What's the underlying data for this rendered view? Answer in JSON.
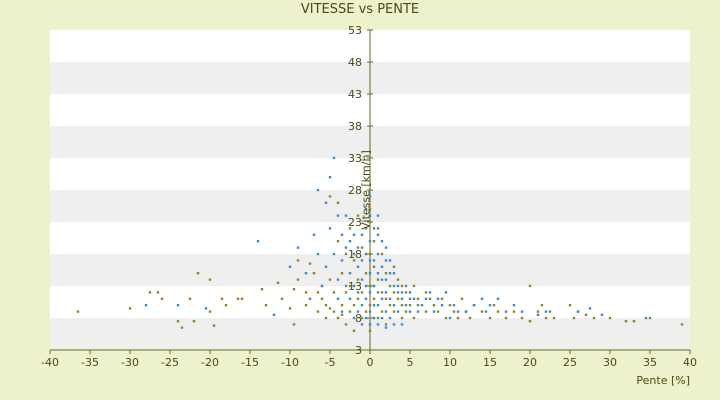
{
  "chart_data": {
    "type": "scatter",
    "title": "VITESSE vs PENTE",
    "xlabel": "Pente [%]",
    "ylabel": "Vitesse [km/h]",
    "xlim": [
      -40,
      40
    ],
    "ylim": [
      3,
      53
    ],
    "x_ticks": [
      "-40",
      "-35",
      "-30",
      "-25",
      "-20",
      "-15",
      "-10",
      "-5",
      "0",
      "5",
      "10",
      "15",
      "20",
      "25",
      "30",
      "35",
      "40"
    ],
    "y_ticks": [
      "3",
      "8",
      "13",
      "18",
      "23",
      "28",
      "33",
      "38",
      "43",
      "48",
      "53"
    ],
    "grid": "horizontal bands",
    "colors": {
      "band_light": "#ffffff",
      "band_dark": "#efefef",
      "axis": "#6b6b1a",
      "series_a": "#8a8a1e",
      "series_b": "#2e8fe0"
    },
    "series": [
      {
        "color": "#8a8a1e",
        "points": [
          [
            -36.5,
            9
          ],
          [
            -30,
            9.5
          ],
          [
            -27.5,
            12
          ],
          [
            -26.5,
            12
          ],
          [
            -26,
            11
          ],
          [
            -24,
            7.5
          ],
          [
            -23.5,
            6.5
          ],
          [
            -22.5,
            11
          ],
          [
            -22,
            7.5
          ],
          [
            -21.5,
            15
          ],
          [
            -20,
            14
          ],
          [
            -20,
            9
          ],
          [
            -19.5,
            6.8
          ],
          [
            -18.5,
            11
          ],
          [
            -18,
            10
          ],
          [
            -16.5,
            11
          ],
          [
            -16,
            11
          ],
          [
            -13.5,
            12.5
          ],
          [
            -13,
            10
          ],
          [
            -11.5,
            13.5
          ],
          [
            -11,
            11
          ],
          [
            -10,
            9.5
          ],
          [
            -9.5,
            7
          ],
          [
            -9.5,
            12.5
          ],
          [
            -9,
            14
          ],
          [
            -9,
            17
          ],
          [
            -8,
            10
          ],
          [
            -8,
            12
          ],
          [
            -7.5,
            16.5
          ],
          [
            -7,
            15
          ],
          [
            -6.5,
            9
          ],
          [
            -6.5,
            12
          ],
          [
            -6,
            11
          ],
          [
            -6,
            13
          ],
          [
            -5.5,
            8
          ],
          [
            -5.5,
            10
          ],
          [
            -5,
            9.5
          ],
          [
            -5,
            14
          ],
          [
            -5,
            27
          ],
          [
            -4.5,
            9
          ],
          [
            -4.5,
            12
          ],
          [
            -4,
            8
          ],
          [
            -4,
            20
          ],
          [
            -4,
            26
          ],
          [
            -3.5,
            8.5
          ],
          [
            -3.5,
            10
          ],
          [
            -3.5,
            15
          ],
          [
            -3,
            7
          ],
          [
            -3,
            12
          ],
          [
            -3,
            18
          ],
          [
            -2.5,
            9
          ],
          [
            -2.5,
            13
          ],
          [
            -2.5,
            22
          ],
          [
            -2,
            6
          ],
          [
            -2,
            10
          ],
          [
            -2,
            17
          ],
          [
            -1.5,
            11
          ],
          [
            -1.5,
            14
          ],
          [
            -1.5,
            24
          ],
          [
            -1,
            8
          ],
          [
            -1,
            12
          ],
          [
            -1,
            19
          ],
          [
            -0.5,
            9
          ],
          [
            -0.5,
            15
          ],
          [
            -0.5,
            22
          ],
          [
            0,
            6
          ],
          [
            0,
            10
          ],
          [
            0,
            13
          ],
          [
            0,
            18
          ],
          [
            0,
            23
          ],
          [
            0,
            25
          ],
          [
            0.5,
            11
          ],
          [
            0.5,
            16
          ],
          [
            0.5,
            20
          ],
          [
            1,
            8
          ],
          [
            1,
            14
          ],
          [
            1,
            22
          ],
          [
            1.5,
            9
          ],
          [
            1.5,
            12
          ],
          [
            1.5,
            18
          ],
          [
            2,
            7
          ],
          [
            2,
            11
          ],
          [
            2,
            15
          ],
          [
            2.5,
            10
          ],
          [
            2.5,
            13
          ],
          [
            3,
            9
          ],
          [
            3,
            12
          ],
          [
            3,
            16
          ],
          [
            3.5,
            11
          ],
          [
            3.5,
            14
          ],
          [
            4,
            8
          ],
          [
            4,
            10
          ],
          [
            4,
            13
          ],
          [
            4.5,
            9
          ],
          [
            4.5,
            12
          ],
          [
            5,
            10
          ],
          [
            5,
            11
          ],
          [
            5.5,
            8
          ],
          [
            5.5,
            13
          ],
          [
            6,
            11
          ],
          [
            6,
            10
          ],
          [
            7,
            9
          ],
          [
            7,
            12
          ],
          [
            7.5,
            11
          ],
          [
            8,
            10
          ],
          [
            8.5,
            9
          ],
          [
            9,
            11
          ],
          [
            9.5,
            8
          ],
          [
            10,
            10
          ],
          [
            10.5,
            9
          ],
          [
            11,
            8
          ],
          [
            11.5,
            11
          ],
          [
            12,
            9
          ],
          [
            12.5,
            8
          ],
          [
            13,
            10
          ],
          [
            14,
            9
          ],
          [
            15,
            8
          ],
          [
            15.5,
            10
          ],
          [
            16,
            9
          ],
          [
            17,
            8
          ],
          [
            18,
            9
          ],
          [
            19,
            8
          ],
          [
            20,
            13
          ],
          [
            20,
            7.5
          ],
          [
            21,
            9
          ],
          [
            21.5,
            10
          ],
          [
            22,
            8
          ],
          [
            22.5,
            9
          ],
          [
            23,
            8
          ],
          [
            25,
            10
          ],
          [
            25.5,
            8
          ],
          [
            26,
            9
          ],
          [
            27,
            8.5
          ],
          [
            28,
            8
          ],
          [
            30,
            8
          ],
          [
            32,
            7.5
          ],
          [
            33,
            7.5
          ],
          [
            35,
            8
          ],
          [
            39,
            7
          ]
        ]
      },
      {
        "color": "#2e8fe0",
        "points": [
          [
            -28,
            10
          ],
          [
            -24,
            10
          ],
          [
            -20.5,
            9.5
          ],
          [
            -14,
            20
          ],
          [
            -12,
            8.5
          ],
          [
            -10,
            16
          ],
          [
            -9,
            19
          ],
          [
            -8,
            15
          ],
          [
            -7.5,
            11
          ],
          [
            -7,
            21
          ],
          [
            -6.5,
            18
          ],
          [
            -6.5,
            28
          ],
          [
            -6,
            13
          ],
          [
            -5.5,
            16
          ],
          [
            -5.5,
            26
          ],
          [
            -5,
            22
          ],
          [
            -5,
            30
          ],
          [
            -4.5,
            18
          ],
          [
            -4.5,
            33
          ],
          [
            -4,
            11
          ],
          [
            -4,
            14
          ],
          [
            -4,
            24
          ],
          [
            -3.5,
            9
          ],
          [
            -3.5,
            17
          ],
          [
            -3.5,
            21
          ],
          [
            -3,
            13
          ],
          [
            -3,
            19
          ],
          [
            -3,
            24
          ],
          [
            -2.5,
            11
          ],
          [
            -2.5,
            15
          ],
          [
            -2.5,
            20
          ],
          [
            -2,
            8
          ],
          [
            -2,
            13
          ],
          [
            -2,
            18
          ],
          [
            -2,
            21
          ],
          [
            -1.5,
            9
          ],
          [
            -1.5,
            12
          ],
          [
            -1.5,
            16
          ],
          [
            -1.5,
            19
          ],
          [
            -1,
            7
          ],
          [
            -1,
            10
          ],
          [
            -1,
            14
          ],
          [
            -1,
            17
          ],
          [
            -1,
            21
          ],
          [
            -0.5,
            8
          ],
          [
            -0.5,
            11
          ],
          [
            -0.5,
            13
          ],
          [
            -0.5,
            18
          ],
          [
            -0.5,
            25
          ],
          [
            0,
            7
          ],
          [
            0,
            9
          ],
          [
            0,
            12
          ],
          [
            0,
            15
          ],
          [
            0,
            17
          ],
          [
            0,
            20
          ],
          [
            0,
            24
          ],
          [
            0,
            27
          ],
          [
            0.5,
            8
          ],
          [
            0.5,
            10
          ],
          [
            0.5,
            13
          ],
          [
            0.5,
            17
          ],
          [
            0.5,
            22
          ],
          [
            1,
            7
          ],
          [
            1,
            10
          ],
          [
            1,
            12
          ],
          [
            1,
            15
          ],
          [
            1,
            18
          ],
          [
            1,
            21
          ],
          [
            1,
            24
          ],
          [
            1.5,
            8
          ],
          [
            1.5,
            11
          ],
          [
            1.5,
            14
          ],
          [
            1.5,
            16
          ],
          [
            1.5,
            20
          ],
          [
            2,
            6.5
          ],
          [
            2,
            9
          ],
          [
            2,
            12
          ],
          [
            2,
            14
          ],
          [
            2,
            17
          ],
          [
            2,
            19
          ],
          [
            2.5,
            8
          ],
          [
            2.5,
            11
          ],
          [
            2.5,
            15
          ],
          [
            2.5,
            17
          ],
          [
            3,
            7
          ],
          [
            3,
            10
          ],
          [
            3,
            13
          ],
          [
            3,
            15
          ],
          [
            3.5,
            9
          ],
          [
            3.5,
            12
          ],
          [
            3.5,
            13
          ],
          [
            4,
            7
          ],
          [
            4,
            11
          ],
          [
            4,
            12
          ],
          [
            4.5,
            10
          ],
          [
            4.5,
            13
          ],
          [
            5,
            9
          ],
          [
            5,
            12
          ],
          [
            5.5,
            11
          ],
          [
            6,
            9
          ],
          [
            6.5,
            10
          ],
          [
            7,
            11
          ],
          [
            7.5,
            12
          ],
          [
            8,
            9
          ],
          [
            8.5,
            11
          ],
          [
            9,
            10
          ],
          [
            9.5,
            12
          ],
          [
            10,
            8
          ],
          [
            10.5,
            10
          ],
          [
            11,
            9
          ],
          [
            12,
            9
          ],
          [
            13,
            10
          ],
          [
            14,
            11
          ],
          [
            14.5,
            9
          ],
          [
            15,
            10
          ],
          [
            16,
            11
          ],
          [
            17,
            9
          ],
          [
            18,
            10
          ],
          [
            19,
            9
          ],
          [
            21,
            8.5
          ],
          [
            22,
            9
          ],
          [
            26,
            9
          ],
          [
            27.5,
            9.5
          ],
          [
            29,
            8.5
          ],
          [
            34.5,
            8
          ]
        ]
      }
    ]
  }
}
